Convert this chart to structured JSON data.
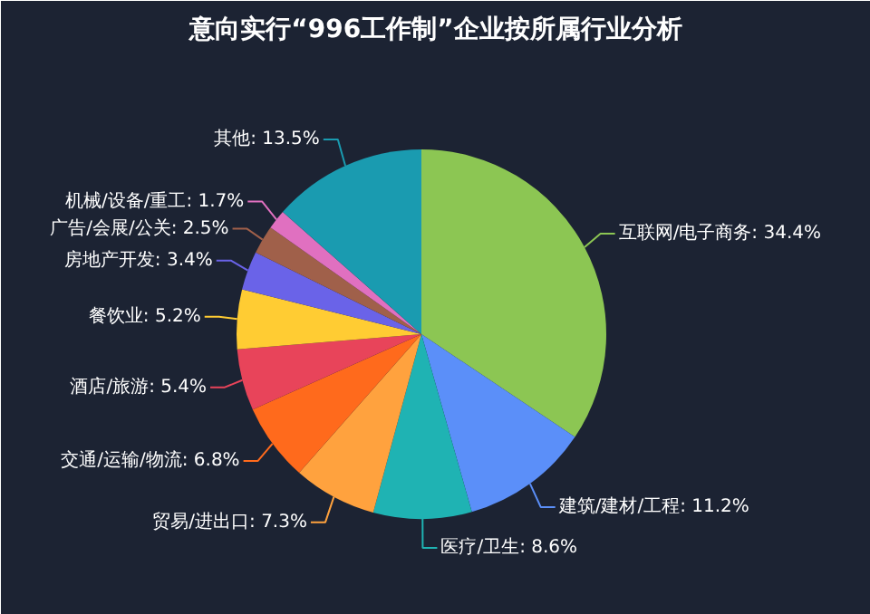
{
  "chart_data": {
    "type": "pie",
    "title": "意向实行“996工作制”企业按所属行业分析",
    "categories": [
      "互联网/电子商务",
      "建筑/建材/工程",
      "医疗/卫生",
      "贸易/进出口",
      "交通/运输/物流",
      "酒店/旅游",
      "餐饮业",
      "房地产开发",
      "广告/会展/公关",
      "机械/设备/重工",
      "其他"
    ],
    "values": [
      34.4,
      11.2,
      8.6,
      7.3,
      6.8,
      5.4,
      5.2,
      3.4,
      2.5,
      1.7,
      13.5
    ],
    "value_labels": [
      "34.4%",
      "11.2%",
      "8.6%",
      "7.3%",
      "6.8%",
      "5.4%",
      "5.2%",
      "3.4%",
      "2.5%",
      "1.7%",
      "13.5%"
    ],
    "colors": [
      "#8cc653",
      "#5b8ff9",
      "#1fb3b3",
      "#ffa23e",
      "#ff6a1c",
      "#e8445a",
      "#ffcc33",
      "#6a63e8",
      "#a0604a",
      "#e070c0",
      "#1a9bb0"
    ]
  }
}
